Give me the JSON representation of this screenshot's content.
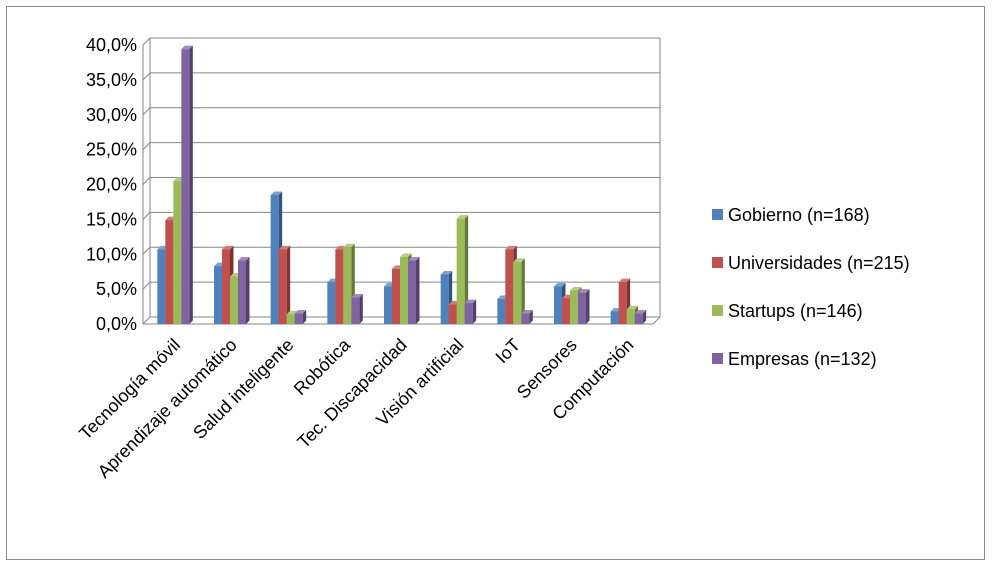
{
  "chart_data": {
    "type": "bar",
    "categories": [
      "Tecnología móvil",
      "Aprendizaje automático",
      "Salud inteligente",
      "Robótica",
      "Tec. Discapacidad",
      "Visión artificial",
      "IoT",
      "Sensores",
      "Computación"
    ],
    "series": [
      {
        "name": "Gobierno (n=168)",
        "color": "#4f81bd",
        "values": [
          10.7,
          8.3,
          18.5,
          6.0,
          5.4,
          7.1,
          3.6,
          5.4,
          1.8
        ]
      },
      {
        "name": "Universidades (n=215)",
        "color": "#c0504d",
        "values": [
          14.9,
          10.7,
          10.7,
          10.7,
          7.9,
          2.8,
          10.7,
          3.7,
          6.0
        ]
      },
      {
        "name": "Startups (n=146)",
        "color": "#9bbb59",
        "values": [
          20.5,
          6.8,
          1.4,
          11.0,
          9.6,
          15.1,
          8.9,
          4.8,
          2.1
        ]
      },
      {
        "name": "Empresas (n=132)",
        "color": "#8064a2",
        "values": [
          39.4,
          9.1,
          1.5,
          3.8,
          9.1,
          3.0,
          1.5,
          4.5,
          1.5
        ]
      }
    ],
    "yticks": [
      "0,0%",
      "5,0%",
      "10,0%",
      "15,0%",
      "20,0%",
      "25,0%",
      "30,0%",
      "35,0%",
      "40,0%"
    ],
    "ylim": [
      0,
      40
    ],
    "grid": true,
    "legend_position": "right"
  }
}
